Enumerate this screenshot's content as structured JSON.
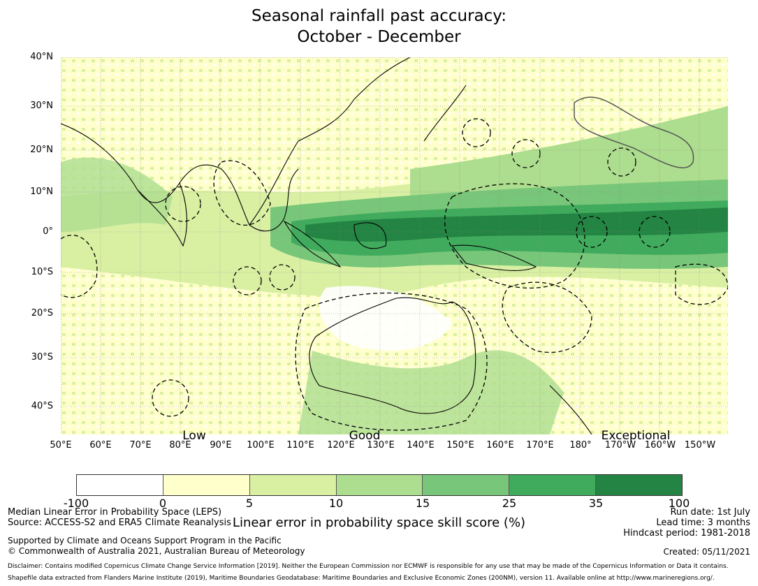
{
  "title_line1": "Seasonal rainfall past accuracy:",
  "title_line2": "October - December",
  "lat_labels": [
    "40°N",
    "30°N",
    "20°N",
    "10°N",
    "0°",
    "10°S",
    "20°S",
    "30°S",
    "40°S"
  ],
  "lon_labels": [
    "50°E",
    "60°E",
    "70°E",
    "80°E",
    "90°E",
    "100°E",
    "110°E",
    "120°E",
    "130°E",
    "140°E",
    "150°E",
    "160°E",
    "170°E",
    "180°",
    "170°W",
    "160°W",
    "150°W"
  ],
  "categories": [
    "Low",
    "Good",
    "Exceptional"
  ],
  "legend": {
    "colors": [
      "#ffffff",
      "#ffffcc",
      "#d9f0a3",
      "#addd8e",
      "#78c679",
      "#41ab5d",
      "#238443"
    ],
    "ticks": [
      "-100",
      "0",
      "5",
      "10",
      "15",
      "25",
      "35",
      "100"
    ],
    "title": "Linear error in probability space skill score (%)"
  },
  "footer": {
    "left1": "Median Linear Error in Probability Space (LEPS)",
    "left2": "Source: ACCESS-S2 and ERA5 Climate Reanalysis",
    "left3": "Supported by Climate and Oceans Support Program in the Pacific",
    "left4": "© Commonwealth of Australia 2021, Australian Bureau of Meteorology",
    "right1": "Run date: 1st July",
    "right2": "Lead time: 3 months",
    "right3": "Hindcast period: 1981-2018",
    "right4": "Created: 05/11/2021",
    "disclaimer": "Disclaimer: Contains modified Copernicus Climate Change Service Information [2019]. Neither the European Commission nor ECMWF is responsible for any use that may be made of the Copernicus Information or Data it contains.",
    "shapefile": "Shapefile data extracted from Flanders Marine Institute (2019), Maritime Boundaries Geodatabase: Maritime Boundaries and Exclusive Economic Zones (200NM), version 11. Available online at http://www.marineregions.org/."
  }
}
